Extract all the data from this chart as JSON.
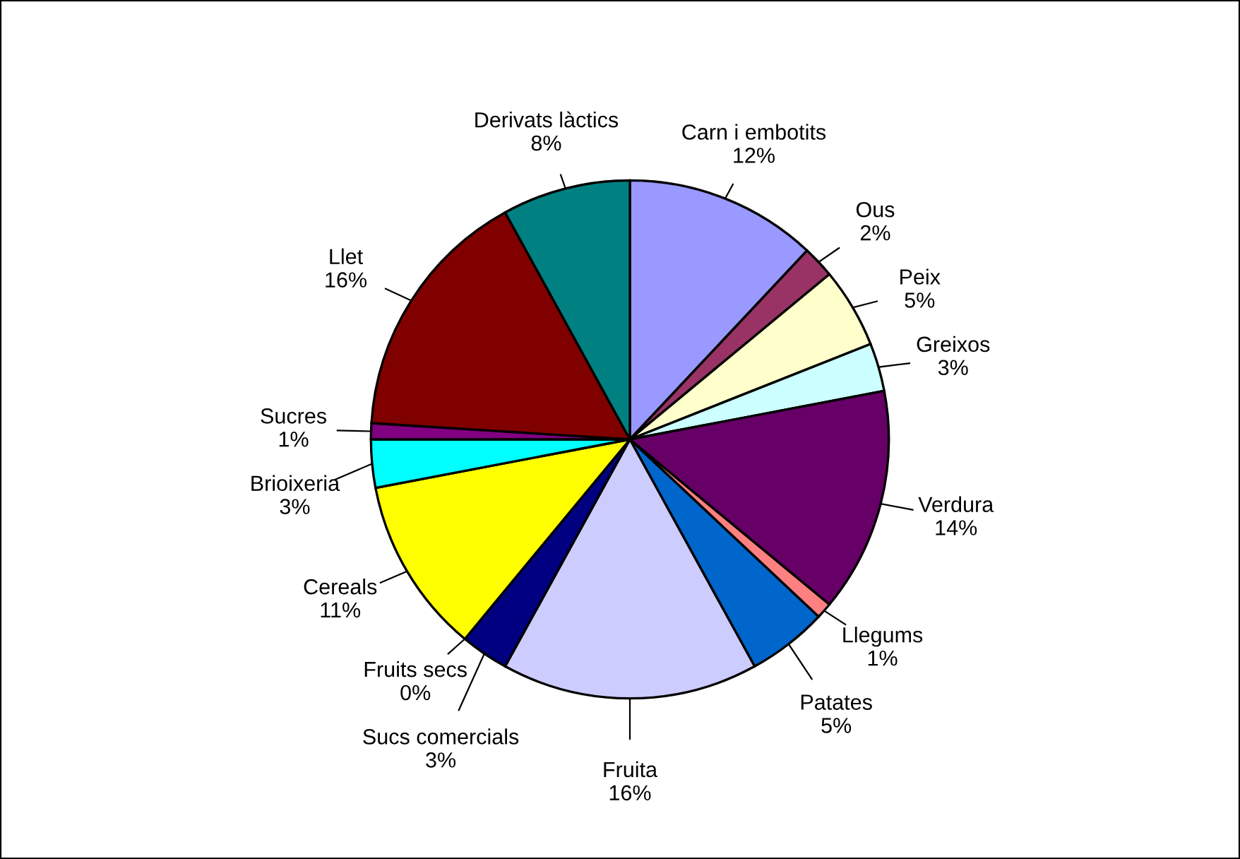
{
  "chart_data": {
    "type": "pie",
    "categories": [
      "Carn i embotits",
      "Ous",
      "Peix",
      "Greixos",
      "Verdura",
      "Llegums",
      "Patates",
      "Fruita",
      "Sucs comercials",
      "Fruits secs",
      "Cereals",
      "Brioixeria",
      "Sucres",
      "Llet",
      "Derivats làctics"
    ],
    "values": [
      12,
      2,
      5,
      3,
      14,
      1,
      5,
      16,
      3,
      0,
      11,
      3,
      1,
      16,
      8
    ],
    "value_labels": [
      "12%",
      "2%",
      "5%",
      "3%",
      "14%",
      "1%",
      "5%",
      "16%",
      "3%",
      "0%",
      "11%",
      "3%",
      "1%",
      "16%",
      "8%"
    ],
    "colors": [
      "#9999ff",
      "#993366",
      "#ffffcc",
      "#ccffff",
      "#660066",
      "#ff8080",
      "#0066cc",
      "#ccccff",
      "#000080",
      "#ff00ff",
      "#ffff00",
      "#00ffff",
      "#800080",
      "#800000",
      "#008080"
    ]
  }
}
